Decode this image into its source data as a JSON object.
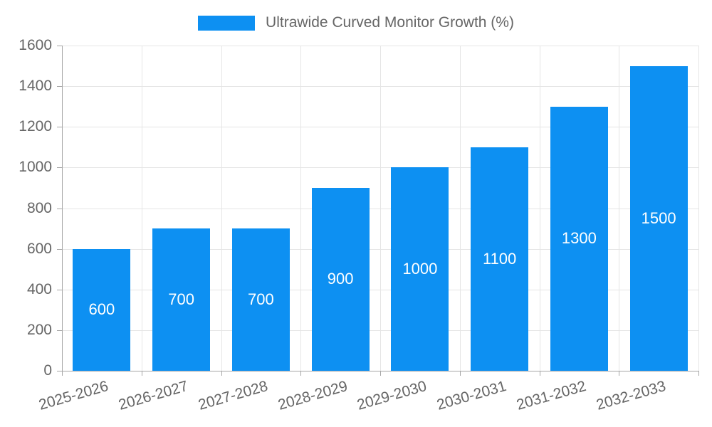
{
  "legend": {
    "label": "Ultrawide Curved Monitor Growth (%)"
  },
  "colors": {
    "bar": "#0d90f2",
    "text": "#666666",
    "grid": "#e5e5e5",
    "axis": "#a6a6a6",
    "data_label": "#ffffff",
    "background": "#ffffff"
  },
  "chart_data": {
    "type": "bar",
    "title": "Ultrawide Curved Monitor Growth (%)",
    "categories": [
      "2025-2026",
      "2026-2027",
      "2027-2028",
      "2028-2029",
      "2029-2030",
      "2030-2031",
      "2031-2032",
      "2032-2033"
    ],
    "values": [
      600,
      700,
      700,
      900,
      1000,
      1100,
      1300,
      1500
    ],
    "xlabel": "",
    "ylabel": "",
    "ylim": [
      0,
      1600
    ],
    "yticks": [
      0,
      200,
      400,
      600,
      800,
      1000,
      1200,
      1400,
      1600
    ],
    "grid": true,
    "legend_position": "top-center",
    "bar_label_position": "inside-center",
    "x_tick_rotation_deg": -16
  }
}
